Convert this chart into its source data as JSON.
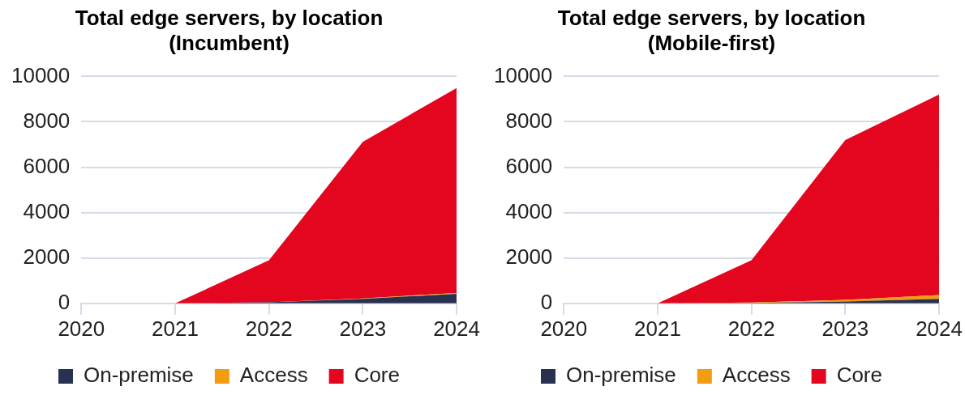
{
  "chart_data": [
    {
      "type": "area",
      "title": "Total edge servers, by location\n(Incumbent)",
      "categories": [
        "2020",
        "2021",
        "2022",
        "2023",
        "2024"
      ],
      "stacked": true,
      "series": [
        {
          "name": "On-premise",
          "color": "#293151",
          "values": [
            0,
            0,
            50,
            200,
            420
          ]
        },
        {
          "name": "Access",
          "color": "#f39c0f",
          "values": [
            0,
            0,
            0,
            20,
            40
          ]
        },
        {
          "name": "Core",
          "color": "#e3061e",
          "values": [
            0,
            0,
            1850,
            6900,
            9030
          ]
        }
      ],
      "ylim": [
        0,
        10000
      ],
      "yticks": [
        0,
        2000,
        4000,
        6000,
        8000,
        10000
      ],
      "grid": "y",
      "legend": "bottom"
    },
    {
      "type": "area",
      "title": "Total edge servers, by location\n(Mobile-first)",
      "categories": [
        "2020",
        "2021",
        "2022",
        "2023",
        "2024"
      ],
      "stacked": true,
      "series": [
        {
          "name": "On-premise",
          "color": "#293151",
          "values": [
            0,
            0,
            20,
            80,
            200
          ]
        },
        {
          "name": "Access",
          "color": "#f39c0f",
          "values": [
            0,
            0,
            20,
            70,
            170
          ]
        },
        {
          "name": "Core",
          "color": "#e3061e",
          "values": [
            0,
            0,
            1860,
            7050,
            8830
          ]
        }
      ],
      "ylim": [
        0,
        10000
      ],
      "yticks": [
        0,
        2000,
        4000,
        6000,
        8000,
        10000
      ],
      "grid": "y",
      "legend": "bottom"
    }
  ]
}
